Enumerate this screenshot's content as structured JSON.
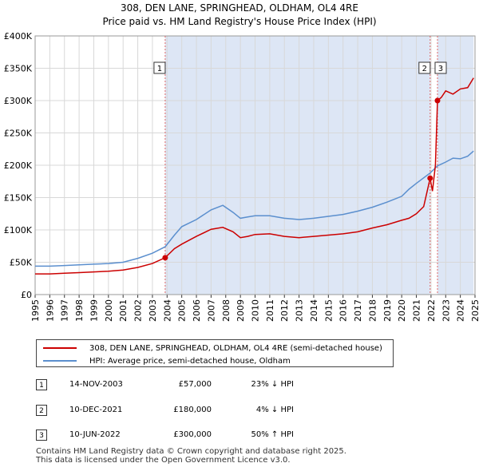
{
  "header": {
    "title_line1": "308, DEN LANE, SPRINGHEAD, OLDHAM, OL4 4RE",
    "title_line2": "Price paid vs. HM Land Registry's House Price Index (HPI)"
  },
  "colors": {
    "property": "#cc0000",
    "hpi": "#5b8fce",
    "shade": "#dde6f5",
    "sale_line": "#dd6666"
  },
  "chart_data": {
    "type": "line",
    "xlabel": "",
    "ylabel": "",
    "xlim": [
      1995.0,
      2025.0
    ],
    "ylim": [
      0,
      400000
    ],
    "yticks": [
      0,
      50000,
      100000,
      150000,
      200000,
      250000,
      300000,
      350000,
      400000
    ],
    "ytick_labels": [
      "£0",
      "£50K",
      "£100K",
      "£150K",
      "£200K",
      "£250K",
      "£300K",
      "£350K",
      "£400K"
    ],
    "xticks": [
      "1995",
      "1996",
      "1997",
      "1998",
      "1999",
      "2000",
      "2001",
      "2002",
      "2003",
      "2004",
      "2005",
      "2006",
      "2007",
      "2008",
      "2009",
      "2010",
      "2011",
      "2012",
      "2013",
      "2014",
      "2015",
      "2016",
      "2017",
      "2018",
      "2019",
      "2020",
      "2021",
      "2022",
      "2023",
      "2024",
      "2025"
    ],
    "shaded_ranges": [
      [
        2003.87,
        2021.94
      ],
      [
        2022.44,
        2024.9
      ]
    ],
    "sales": [
      {
        "id": "1",
        "x": 2003.87,
        "y": 57000
      },
      {
        "id": "2",
        "x": 2021.94,
        "y": 180000
      },
      {
        "id": "3",
        "x": 2022.44,
        "y": 300000
      }
    ],
    "series": [
      {
        "name": "hpi",
        "x": [
          1995.0,
          1996.0,
          1997.0,
          1998.0,
          1999.0,
          2000.0,
          2001.0,
          2002.0,
          2003.0,
          2003.87,
          2004.5,
          2005.0,
          2006.0,
          2007.0,
          2007.8,
          2008.5,
          2009.0,
          2009.5,
          2010.0,
          2011.0,
          2012.0,
          2013.0,
          2014.0,
          2015.0,
          2016.0,
          2017.0,
          2018.0,
          2019.0,
          2020.0,
          2020.5,
          2021.0,
          2021.94,
          2022.44,
          2023.0,
          2023.5,
          2024.0,
          2024.5,
          2024.9
        ],
        "y": [
          44000,
          44000,
          45000,
          46000,
          47000,
          48000,
          50000,
          56000,
          64000,
          74000,
          92000,
          105000,
          116000,
          131000,
          138000,
          127000,
          118000,
          120000,
          122000,
          122000,
          118000,
          116000,
          118000,
          121000,
          124000,
          129000,
          135000,
          143000,
          152000,
          163000,
          172000,
          188000,
          199000,
          205000,
          211000,
          210000,
          214000,
          222000
        ]
      },
      {
        "name": "property",
        "x": [
          1995.0,
          1996.0,
          1997.0,
          1998.0,
          1999.0,
          2000.0,
          2001.0,
          2002.0,
          2003.0,
          2003.87,
          2004.5,
          2005.0,
          2006.0,
          2007.0,
          2007.8,
          2008.5,
          2009.0,
          2009.5,
          2010.0,
          2011.0,
          2012.0,
          2013.0,
          2014.0,
          2015.0,
          2016.0,
          2017.0,
          2018.0,
          2019.0,
          2020.0,
          2020.5,
          2021.0,
          2021.5,
          2021.94,
          2022.1,
          2022.3,
          2022.44,
          2022.7,
          2023.0,
          2023.5,
          2024.0,
          2024.5,
          2024.9
        ],
        "y": [
          32000,
          32000,
          33000,
          34000,
          35000,
          36000,
          38000,
          42000,
          48000,
          57000,
          71000,
          78000,
          90000,
          101000,
          104000,
          97000,
          88000,
          90000,
          93000,
          94000,
          90000,
          88000,
          90000,
          92000,
          94000,
          97000,
          103000,
          108000,
          115000,
          118000,
          125000,
          136000,
          180000,
          160000,
          200000,
          300000,
          305000,
          315000,
          310000,
          318000,
          320000,
          335000
        ]
      }
    ]
  },
  "legend": {
    "property_label": "308, DEN LANE, SPRINGHEAD, OLDHAM, OL4 4RE (semi-detached house)",
    "hpi_label": "HPI: Average price, semi-detached house, Oldham"
  },
  "transactions": [
    {
      "id": "1",
      "date": "14-NOV-2003",
      "price": "£57,000",
      "diff": "23% ↓ HPI"
    },
    {
      "id": "2",
      "date": "10-DEC-2021",
      "price": "£180,000",
      "diff": "4% ↓ HPI"
    },
    {
      "id": "3",
      "date": "10-JUN-2022",
      "price": "£300,000",
      "diff": "50% ↑ HPI"
    }
  ],
  "footer": {
    "line1": "Contains HM Land Registry data © Crown copyright and database right 2025.",
    "line2": "This data is licensed under the Open Government Licence v3.0."
  }
}
